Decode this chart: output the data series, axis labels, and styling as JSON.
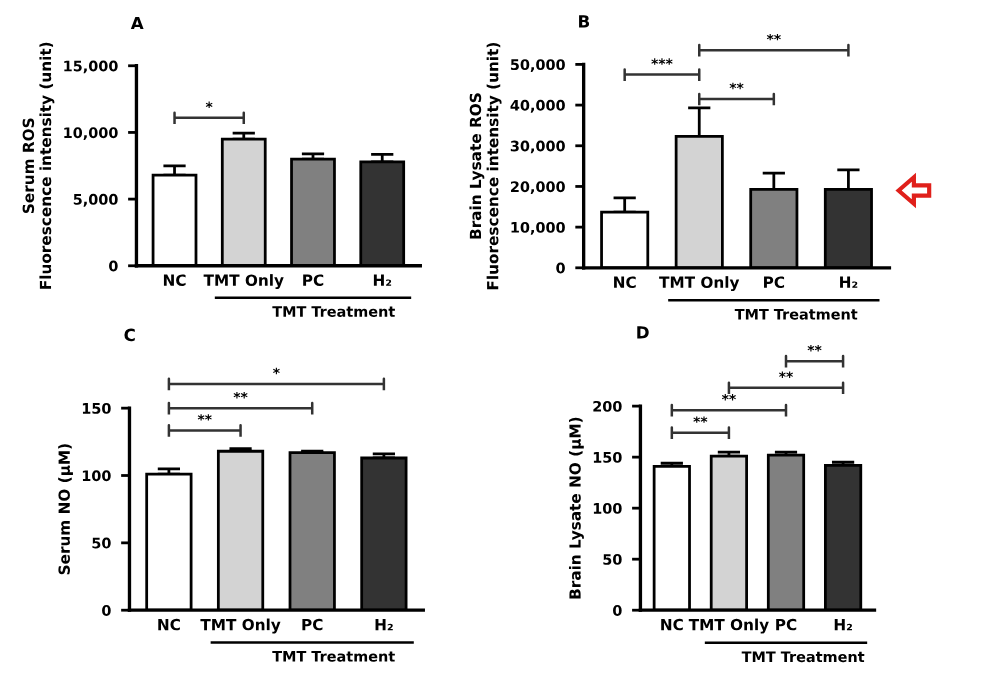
{
  "chart_data": [
    {
      "type": "bar",
      "title": "A",
      "ylabel": "Serum ROS\nFluorescence intensity (unit)",
      "categories": [
        "NC",
        "TMT Only",
        "PC",
        "H₂"
      ],
      "values": [
        6800,
        9500,
        8000,
        7800
      ],
      "errors": [
        700,
        450,
        400,
        550
      ],
      "colors": [
        "#ffffff",
        "#d3d3d3",
        "#808080",
        "#333333"
      ],
      "ylim": [
        0,
        15000
      ],
      "yticks": [
        0,
        {
          "value": 5000,
          "label": "5,000"
        },
        {
          "value": 10000,
          "label": "10,000"
        },
        {
          "value": 15000,
          "label": "15,000"
        }
      ],
      "grid": false,
      "legend": false,
      "annotations": [
        "*",
        "TMT Treatment"
      ]
    },
    {
      "type": "bar",
      "title": "B",
      "ylabel": "Brain Lysate ROS\nFluorescence intensity (unit)",
      "categories": [
        "NC",
        "TMT Only",
        "PC",
        "H₂"
      ],
      "values": [
        13700,
        32300,
        19300,
        19300
      ],
      "errors": [
        3500,
        7000,
        4000,
        4800
      ],
      "colors": [
        "#ffffff",
        "#d3d3d3",
        "#808080",
        "#333333"
      ],
      "ylim": [
        0,
        50000
      ],
      "yticks": [
        0,
        {
          "value": 10000,
          "label": "10,000"
        },
        {
          "value": 20000,
          "label": "20,000"
        },
        {
          "value": 30000,
          "label": "30,000"
        },
        {
          "value": 40000,
          "label": "40,000"
        },
        {
          "value": 50000,
          "label": "50,000"
        }
      ],
      "grid": false,
      "legend": false,
      "annotations": [
        "***",
        "**",
        "**",
        "TMT Treatment"
      ]
    },
    {
      "type": "bar",
      "title": "C",
      "ylabel": "Serum NO (μM)",
      "categories": [
        "NC",
        "TMT Only",
        "PC",
        "H₂"
      ],
      "values": [
        101,
        118,
        117,
        113
      ],
      "errors": [
        4,
        2,
        1,
        3
      ],
      "colors": [
        "#ffffff",
        "#d3d3d3",
        "#808080",
        "#333333"
      ],
      "ylim": [
        0,
        150
      ],
      "yticks": [
        0,
        50,
        100,
        150
      ],
      "grid": false,
      "legend": false,
      "annotations": [
        "**",
        "**",
        "*",
        "TMT Treatment"
      ]
    },
    {
      "type": "bar",
      "title": "D",
      "ylabel": "Brain Lysate NO (μM)",
      "categories": [
        "NC",
        "TMT Only",
        "PC",
        "H₂"
      ],
      "values": [
        141,
        151,
        152,
        142
      ],
      "errors": [
        3,
        4,
        3,
        3
      ],
      "colors": [
        "#ffffff",
        "#d3d3d3",
        "#808080",
        "#333333"
      ],
      "ylim": [
        0,
        200
      ],
      "yticks": [
        0,
        50,
        100,
        150,
        200
      ],
      "grid": false,
      "legend": false,
      "annotations": [
        "**",
        "**",
        "**",
        "**",
        "TMT Treatment"
      ]
    }
  ]
}
